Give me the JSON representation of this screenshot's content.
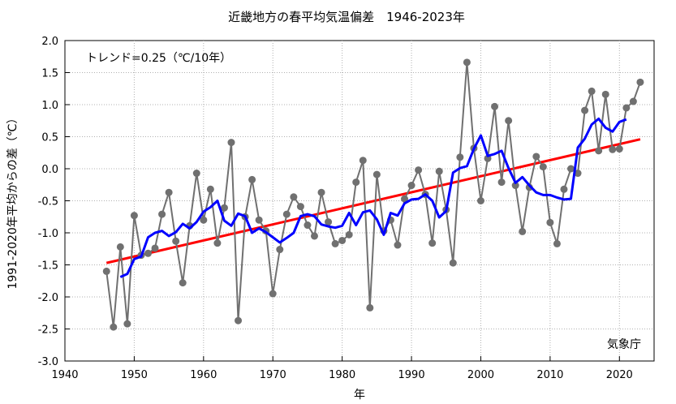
{
  "chart_data": {
    "type": "line",
    "title": "近畿地方の春平均気温偏差　1946-2023年",
    "xlabel": "年",
    "ylabel": "1991-2020年平均からの差（℃）",
    "trend_label": "トレンド=0.25（℃/10年）",
    "credit": "気象庁",
    "xlim": [
      1940,
      2025
    ],
    "ylim": [
      -3.0,
      2.0
    ],
    "xticks": [
      "1940",
      "1950",
      "1960",
      "1970",
      "1980",
      "1990",
      "2000",
      "2010",
      "2020"
    ],
    "yticks": [
      "2.0",
      "1.5",
      "1.0",
      "0.5",
      "0.0",
      "-0.5",
      "-1.0",
      "-1.5",
      "-2.0",
      "-2.5",
      "-3.0"
    ],
    "colors": {
      "annual": "#707070",
      "moving_avg": "#0000ff",
      "trend": "#ff0000"
    },
    "years": [
      1946,
      1947,
      1948,
      1949,
      1950,
      1951,
      1952,
      1953,
      1954,
      1955,
      1956,
      1957,
      1958,
      1959,
      1960,
      1961,
      1962,
      1963,
      1964,
      1965,
      1966,
      1967,
      1968,
      1969,
      1970,
      1971,
      1972,
      1973,
      1974,
      1975,
      1976,
      1977,
      1978,
      1979,
      1980,
      1981,
      1982,
      1983,
      1984,
      1985,
      1986,
      1987,
      1988,
      1989,
      1990,
      1991,
      1992,
      1993,
      1994,
      1995,
      1996,
      1997,
      1998,
      1999,
      2000,
      2001,
      2002,
      2003,
      2004,
      2005,
      2006,
      2007,
      2008,
      2009,
      2010,
      2011,
      2012,
      2013,
      2014,
      2015,
      2016,
      2017,
      2018,
      2019,
      2020,
      2021,
      2022,
      2023
    ],
    "anomaly": [
      -1.6,
      -2.47,
      -1.22,
      -2.42,
      -0.73,
      -1.35,
      -1.32,
      -1.24,
      -0.71,
      -0.37,
      -1.13,
      -1.78,
      -0.89,
      -0.07,
      -0.8,
      -0.32,
      -1.16,
      -0.61,
      0.41,
      -2.37,
      -0.75,
      -0.17,
      -0.8,
      -0.97,
      -1.95,
      -1.26,
      -0.71,
      -0.44,
      -0.59,
      -0.88,
      -1.05,
      -0.37,
      -0.83,
      -1.17,
      -1.12,
      -1.03,
      -0.21,
      0.13,
      -2.17,
      -0.09,
      -0.97,
      -0.8,
      -1.19,
      -0.47,
      -0.26,
      -0.02,
      -0.4,
      -1.16,
      -0.04,
      -0.64,
      -1.47,
      0.18,
      1.66,
      0.32,
      -0.5,
      0.16,
      0.97,
      -0.21,
      0.75,
      -0.26,
      -0.98,
      -0.29,
      0.19,
      0.03,
      -0.84,
      -1.17,
      -0.32,
      0.0,
      -0.07,
      0.91,
      1.21,
      0.28,
      1.16,
      0.3,
      0.31,
      0.95,
      1.05,
      1.35
    ],
    "moving_avg_years": [
      1948,
      1949,
      1950,
      1951,
      1952,
      1953,
      1954,
      1955,
      1956,
      1957,
      1958,
      1959,
      1960,
      1961,
      1962,
      1963,
      1964,
      1965,
      1966,
      1967,
      1968,
      1969,
      1970,
      1971,
      1972,
      1973,
      1974,
      1975,
      1976,
      1977,
      1978,
      1979,
      1980,
      1981,
      1982,
      1983,
      1984,
      1985,
      1986,
      1987,
      1988,
      1989,
      1990,
      1991,
      1992,
      1993,
      1994,
      1995,
      1996,
      1997,
      1998,
      1999,
      2000,
      2001,
      2002,
      2003,
      2004,
      2005,
      2006,
      2007,
      2008,
      2009,
      2010,
      2011,
      2012,
      2013,
      2014,
      2015,
      2016,
      2017,
      2018,
      2019,
      2020,
      2021
    ],
    "moving_avg": [
      -1.69,
      -1.64,
      -1.41,
      -1.37,
      -1.07,
      -1.0,
      -0.97,
      -1.05,
      -0.99,
      -0.86,
      -0.93,
      -0.83,
      -0.67,
      -0.6,
      -0.5,
      -0.81,
      -0.89,
      -0.7,
      -0.74,
      -1.0,
      -0.93,
      -0.99,
      -1.07,
      -1.15,
      -1.08,
      -1.0,
      -0.74,
      -0.71,
      -0.74,
      -0.87,
      -0.9,
      -0.92,
      -0.89,
      -0.69,
      -0.88,
      -0.68,
      -0.65,
      -0.79,
      -1.03,
      -0.69,
      -0.73,
      -0.54,
      -0.48,
      -0.47,
      -0.4,
      -0.5,
      -0.76,
      -0.66,
      -0.06,
      0.01,
      0.04,
      0.31,
      0.52,
      0.2,
      0.23,
      0.28,
      0.01,
      -0.22,
      -0.13,
      -0.26,
      -0.37,
      -0.41,
      -0.41,
      -0.45,
      -0.48,
      -0.47,
      0.33,
      0.47,
      0.69,
      0.78,
      0.64,
      0.58,
      0.73,
      0.77
    ],
    "trend": {
      "start_year": 1946,
      "start_value": -1.47,
      "end_year": 2023,
      "end_value": 0.46
    }
  }
}
